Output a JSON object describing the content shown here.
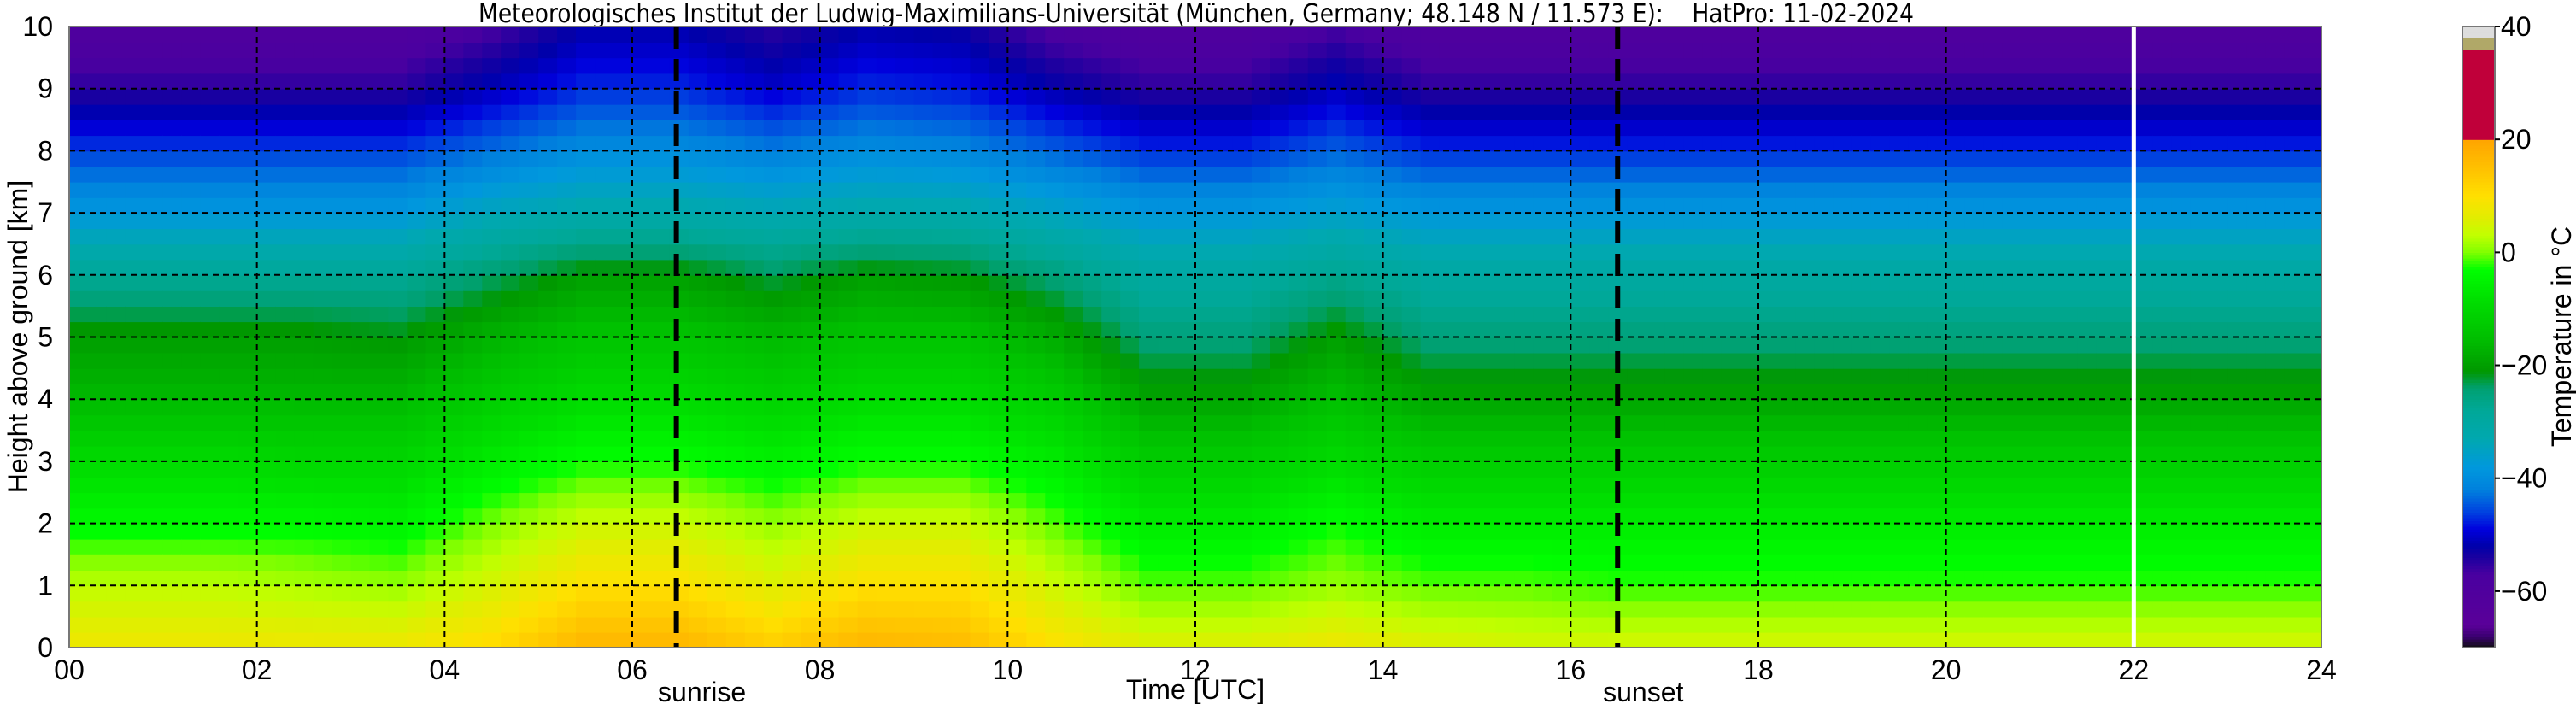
{
  "chart_data": {
    "type": "heatmap",
    "title": "Meteorologisches Institut der Ludwig-Maximilians-Universität (München, Germany; 48.148 N / 11.573 E):    HatPro: 11-02-2024",
    "xlabel": "Time [UTC]",
    "ylabel": "Height above ground [km]",
    "xlim": [
      0,
      24
    ],
    "ylim": [
      0,
      10
    ],
    "xticks": [
      "00",
      "02",
      "04",
      "06",
      "08",
      "10",
      "12",
      "14",
      "16",
      "18",
      "20",
      "22",
      "24"
    ],
    "yticks": [
      "0",
      "1",
      "2",
      "3",
      "4",
      "5",
      "6",
      "7",
      "8",
      "9",
      "10"
    ],
    "grid": true,
    "colorbar": {
      "label": "Temperature in °C",
      "range": [
        -70,
        40
      ],
      "ticks": [
        "40",
        "20",
        "0",
        "−20",
        "−40",
        "−60"
      ],
      "tick_values": [
        40,
        20,
        0,
        -20,
        -40,
        -60
      ]
    },
    "annotations": [
      {
        "label": "sunrise",
        "time": 6.47,
        "style": "black-dashed"
      },
      {
        "label": "sunset",
        "time": 16.5,
        "style": "black-dashed"
      },
      {
        "label": "",
        "time": 22.0,
        "style": "white-solid"
      }
    ],
    "heights_km": [
      0,
      1,
      2,
      3,
      4,
      5,
      6,
      7,
      8,
      9,
      10
    ],
    "times_utc": [
      0.5,
      1.5,
      2.5,
      3.5,
      4.5,
      5.5,
      6.5,
      7.5,
      8.5,
      9.5,
      10.5,
      11.5,
      12.5,
      13.5,
      14.5,
      15.5,
      16.5,
      17.5,
      18.5,
      19.5,
      20.5,
      21.5,
      22.5,
      23.5
    ],
    "temperature_c": [
      [
        8,
        3,
        -4,
        -9,
        -16,
        -20,
        -28,
        -38,
        -46,
        -55,
        -60
      ],
      [
        8,
        3,
        -4,
        -9,
        -16,
        -20,
        -28,
        -38,
        -46,
        -55,
        -60
      ],
      [
        8,
        2,
        -4,
        -10,
        -16,
        -20,
        -28,
        -38,
        -46,
        -55,
        -60
      ],
      [
        8,
        1,
        -5,
        -10,
        -16,
        -21,
        -28,
        -38,
        -46,
        -55,
        -60
      ],
      [
        11,
        5,
        0,
        -6,
        -12,
        -17,
        -24,
        -34,
        -43,
        -51,
        -57
      ],
      [
        17,
        10,
        4,
        -3,
        -9,
        -14,
        -20,
        -32,
        -40,
        -47,
        -52
      ],
      [
        17,
        10,
        4,
        -3,
        -9,
        -14,
        -20,
        -32,
        -40,
        -47,
        -52
      ],
      [
        13,
        6,
        1,
        -5,
        -11,
        -16,
        -23,
        -33,
        -42,
        -50,
        -55
      ],
      [
        17,
        10,
        4,
        -3,
        -9,
        -14,
        -20,
        -32,
        -40,
        -47,
        -52
      ],
      [
        16,
        10,
        4,
        -3,
        -9,
        -14,
        -21,
        -32,
        -41,
        -48,
        -53
      ],
      [
        10,
        4,
        -1,
        -6,
        -12,
        -18,
        -25,
        -35,
        -44,
        -52,
        -58
      ],
      [
        6,
        -1,
        -6,
        -12,
        -19,
        -25,
        -30,
        -38,
        -47,
        -55,
        -60
      ],
      [
        6,
        -1,
        -6,
        -12,
        -19,
        -25,
        -30,
        -38,
        -47,
        -55,
        -60
      ],
      [
        8,
        1,
        -3,
        -9,
        -15,
        -20,
        -27,
        -36,
        -44,
        -51,
        -57
      ],
      [
        6,
        -1,
        -6,
        -12,
        -19,
        -25,
        -30,
        -38,
        -47,
        -55,
        -60
      ],
      [
        5,
        -1,
        -6,
        -12,
        -19,
        -25,
        -30,
        -38,
        -47,
        -55,
        -60
      ],
      [
        5,
        -2,
        -6,
        -12,
        -19,
        -25,
        -30,
        -38,
        -47,
        -55,
        -60
      ],
      [
        5,
        -2,
        -6,
        -12,
        -19,
        -25,
        -30,
        -38,
        -47,
        -55,
        -60
      ],
      [
        5,
        -2,
        -6,
        -12,
        -19,
        -25,
        -30,
        -38,
        -47,
        -55,
        -60
      ],
      [
        5,
        -2,
        -6,
        -12,
        -19,
        -25,
        -30,
        -38,
        -47,
        -55,
        -60
      ],
      [
        5,
        -2,
        -6,
        -12,
        -19,
        -25,
        -30,
        -38,
        -47,
        -55,
        -60
      ],
      [
        5,
        -2,
        -6,
        -12,
        -19,
        -25,
        -30,
        -38,
        -47,
        -55,
        -60
      ],
      [
        5,
        -2,
        -6,
        -12,
        -19,
        -25,
        -30,
        -38,
        -47,
        -55,
        -60
      ],
      [
        5,
        -2,
        -6,
        -12,
        -19,
        -25,
        -30,
        -38,
        -47,
        -55,
        -60
      ]
    ],
    "colormap": [
      [
        -70,
        "#101010"
      ],
      [
        -68,
        "#3a0070"
      ],
      [
        -66,
        "#5a0099"
      ],
      [
        -57,
        "#4a00a0"
      ],
      [
        -54,
        "#1a00a0"
      ],
      [
        -52,
        "#0000aa"
      ],
      [
        -49,
        "#0000dd"
      ],
      [
        -46,
        "#0040e0"
      ],
      [
        -42,
        "#0080dd"
      ],
      [
        -38,
        "#0098dd"
      ],
      [
        -33,
        "#00a8b0"
      ],
      [
        -28,
        "#00a898"
      ],
      [
        -24,
        "#00a070"
      ],
      [
        -21,
        "#009800"
      ],
      [
        -15,
        "#00c000"
      ],
      [
        -8,
        "#00e000"
      ],
      [
        -3,
        "#00ff00"
      ],
      [
        0,
        "#80ff00"
      ],
      [
        3,
        "#c0ff00"
      ],
      [
        6,
        "#e0ee00"
      ],
      [
        10,
        "#ffe000"
      ],
      [
        15,
        "#ffc000"
      ],
      [
        20,
        "#ffa500"
      ],
      [
        20.01,
        "#c0003a"
      ],
      [
        36,
        "#c0003a"
      ],
      [
        36.01,
        "#b0a868"
      ],
      [
        38,
        "#b0a868"
      ],
      [
        38.01,
        "#dddddd"
      ],
      [
        40,
        "#dddddd"
      ]
    ]
  }
}
